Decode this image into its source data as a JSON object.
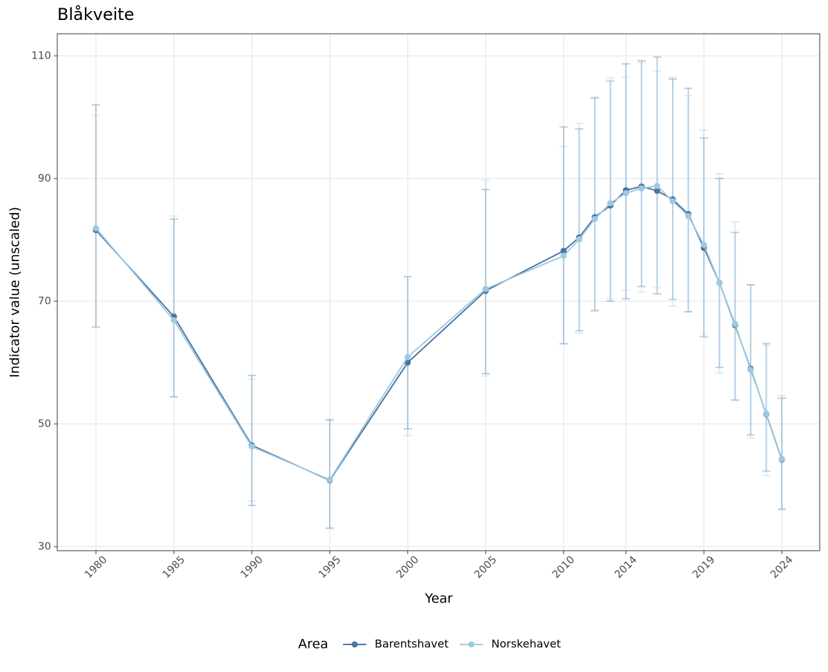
{
  "chart_data": {
    "type": "line",
    "title": "Blåkveite",
    "x_label": "Year",
    "y_label": "Indicator value (unscaled)",
    "x": [
      1980,
      1985,
      1990,
      1995,
      2000,
      2005,
      2010,
      2011,
      2012,
      2013,
      2014,
      2015,
      2016,
      2017,
      2018,
      2019,
      2020,
      2021,
      2022,
      2023,
      2024
    ],
    "series": [
      {
        "name": "Barentshavet",
        "color": "#4a74a4",
        "values": [
          81.6,
          67.5,
          46.5,
          40.8,
          60.0,
          71.7,
          78.2,
          80.4,
          83.7,
          85.6,
          88.1,
          88.7,
          88.0,
          86.6,
          84.2,
          78.7,
          73.0,
          66.1,
          59.0,
          51.6,
          44.2
        ],
        "lower": [
          65.8,
          54.4,
          36.7,
          33.0,
          49.2,
          58.2,
          63.1,
          65.2,
          68.5,
          70.0,
          70.4,
          72.4,
          71.2,
          70.3,
          68.3,
          64.2,
          59.2,
          53.9,
          48.2,
          42.3,
          36.1
        ],
        "upper": [
          102.0,
          83.4,
          57.9,
          50.7,
          74.0,
          88.2,
          98.4,
          98.1,
          103.1,
          105.9,
          108.7,
          109.2,
          109.8,
          106.2,
          104.7,
          96.6,
          90.0,
          81.2,
          72.7,
          63.1,
          54.2
        ]
      },
      {
        "name": "Norskehavet",
        "color": "#9ecae1",
        "values": [
          81.9,
          66.9,
          46.3,
          40.9,
          60.9,
          72.0,
          77.4,
          80.1,
          83.4,
          86.0,
          87.6,
          88.4,
          88.8,
          86.3,
          83.9,
          79.2,
          73.0,
          66.3,
          58.8,
          51.7,
          44.3
        ],
        "lower": [
          65.8,
          54.5,
          37.4,
          33.0,
          48.1,
          57.8,
          63.0,
          64.8,
          68.4,
          70.4,
          71.8,
          71.5,
          72.2,
          69.2,
          68.2,
          64.6,
          58.3,
          53.8,
          47.7,
          41.6,
          36.0
        ],
        "upper": [
          100.3,
          83.9,
          57.3,
          50.5,
          74.0,
          89.7,
          95.2,
          99.0,
          103.3,
          106.4,
          106.5,
          108.9,
          107.5,
          106.5,
          103.5,
          97.9,
          90.8,
          82.9,
          72.6,
          62.8,
          54.6
        ]
      }
    ],
    "legend_title": "Area",
    "legend_position": "bottom",
    "xlim": [
      1977.52,
      2026.43
    ],
    "xticks": [
      1980,
      1985,
      1990,
      1995,
      2000,
      2005,
      2010,
      2014,
      2019,
      2024
    ],
    "ylim": [
      29.33,
      113.6
    ],
    "yticks": [
      30,
      50,
      70,
      90,
      110
    ],
    "grid": true
  }
}
